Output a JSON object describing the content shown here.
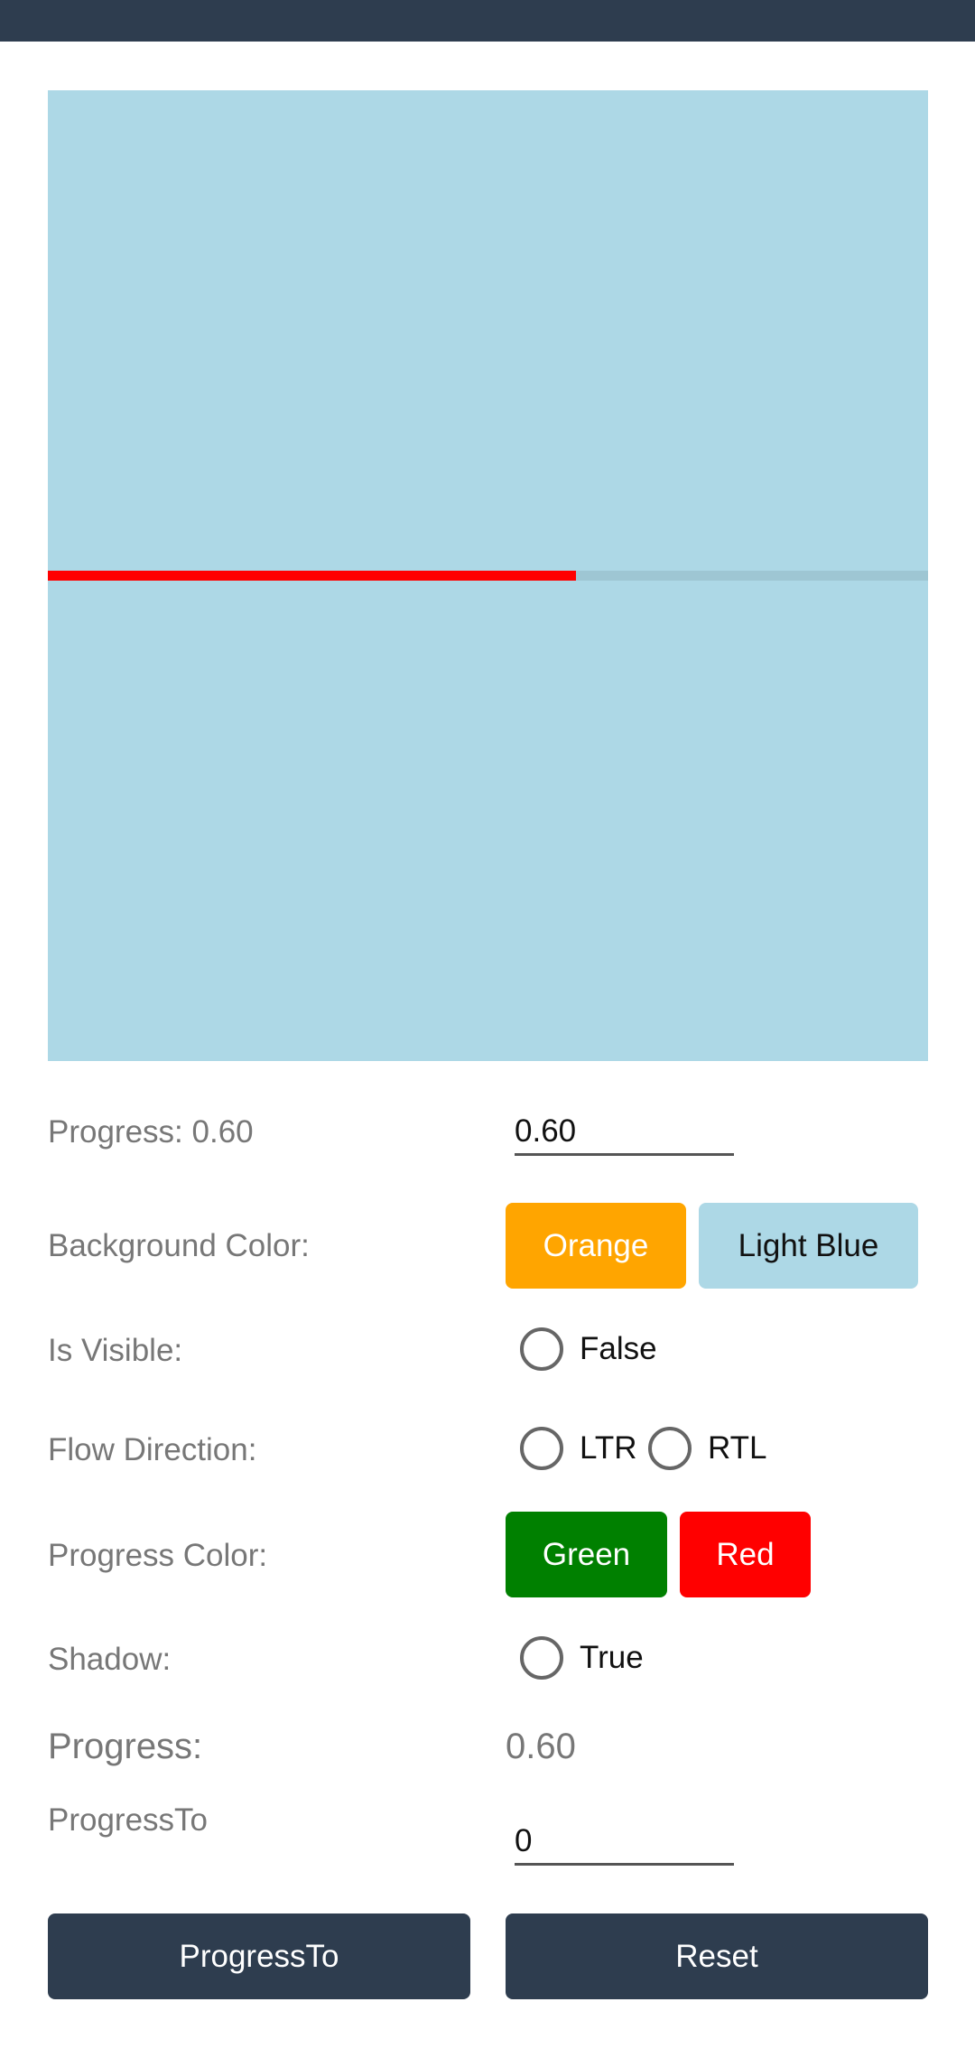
{
  "progress_bar": {
    "progress": 0.6,
    "progress_color": "#ff0000",
    "track_color": "#9ec6d3",
    "background_color": "#add8e6"
  },
  "controls": {
    "progress_label": "Progress: 0.60",
    "progress_entry_value": "0.60",
    "background_color_label": "Background Color:",
    "orange_button": "Orange",
    "light_blue_button": "Light Blue",
    "is_visible_label": "Is Visible:",
    "is_visible_option": "False",
    "flow_direction_label": "Flow Direction:",
    "ltr_option": "LTR",
    "rtl_option": "RTL",
    "progress_color_label": "Progress Color:",
    "green_button": "Green",
    "red_button": "Red",
    "shadow_label": "Shadow:",
    "shadow_option": "True",
    "progress_title": "Progress:",
    "progress_value": "0.60",
    "progress_to_label": "ProgressTo",
    "progress_to_entry_value": "0",
    "progress_to_button": "ProgressTo",
    "reset_button": "Reset"
  },
  "colors": {
    "orange": "#ffa500",
    "light_blue": "#add8e6",
    "green": "#008000",
    "red": "#ff0000",
    "dark_button": "#2e3d4f"
  }
}
